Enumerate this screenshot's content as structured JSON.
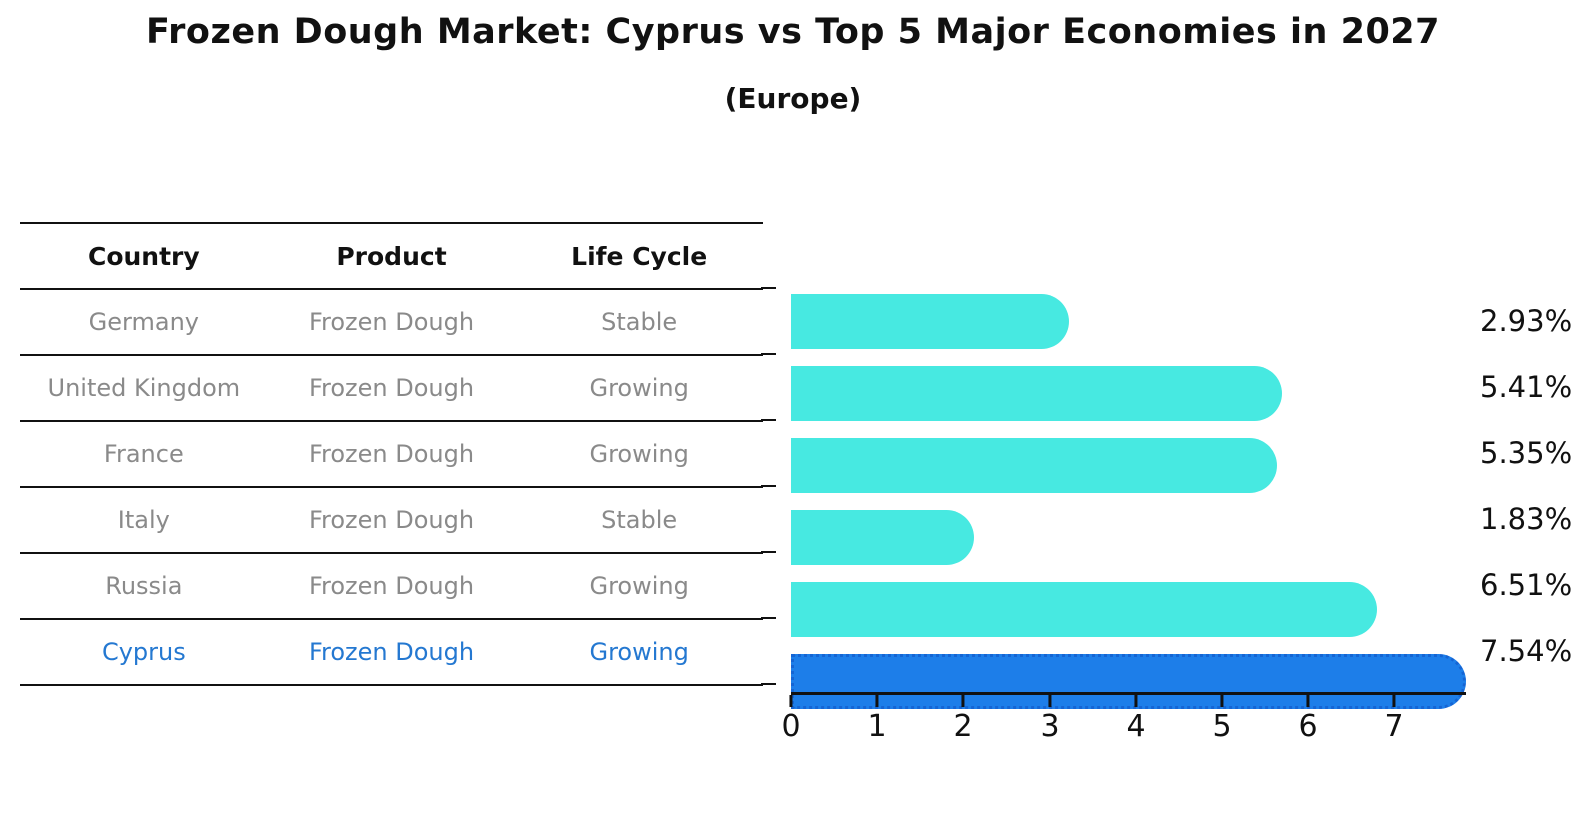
{
  "title": "Frozen Dough Market: Cyprus vs Top 5 Major Economies in 2027",
  "subtitle": "(Europe)",
  "table": {
    "headers": [
      "Country",
      "Product",
      "Life Cycle"
    ],
    "rows": [
      {
        "country": "Germany",
        "product": "Frozen Dough",
        "life_cycle": "Stable",
        "highlight": false
      },
      {
        "country": "United Kingdom",
        "product": "Frozen Dough",
        "life_cycle": "Growing",
        "highlight": false
      },
      {
        "country": "France",
        "product": "Frozen Dough",
        "life_cycle": "Growing",
        "highlight": false
      },
      {
        "country": "Italy",
        "product": "Frozen Dough",
        "life_cycle": "Stable",
        "highlight": false
      },
      {
        "country": "Russia",
        "product": "Frozen Dough",
        "life_cycle": "Growing",
        "highlight": false
      },
      {
        "country": "Cyprus",
        "product": "Frozen Dough",
        "life_cycle": "Growing",
        "highlight": true
      }
    ]
  },
  "chart_data": {
    "type": "bar",
    "orientation": "horizontal",
    "title": "Frozen Dough Market: Cyprus vs Top 5 Major Economies in 2027 (Europe)",
    "categories": [
      "Germany",
      "United Kingdom",
      "France",
      "Italy",
      "Russia",
      "Cyprus"
    ],
    "values": [
      2.93,
      5.41,
      5.35,
      1.83,
      6.51,
      7.54
    ],
    "value_labels": [
      "2.93%",
      "5.41%",
      "5.35%",
      "1.83%",
      "6.51%",
      "7.54%"
    ],
    "x_ticks": [
      "0",
      "1",
      "2",
      "3",
      "4",
      "5",
      "6",
      "7"
    ],
    "xlim": [
      0,
      7.83
    ],
    "grid": false,
    "legend": "none",
    "bar_color": "#47e9e1",
    "highlight_color": "#1d7ee9",
    "highlight_border_color": "#1565d4",
    "highlight_index": 5
  },
  "colors": {
    "text_primary": "#111111",
    "table_text_muted": "#8a8a8a",
    "highlight_text": "#2478d1",
    "axis": "#111111"
  }
}
